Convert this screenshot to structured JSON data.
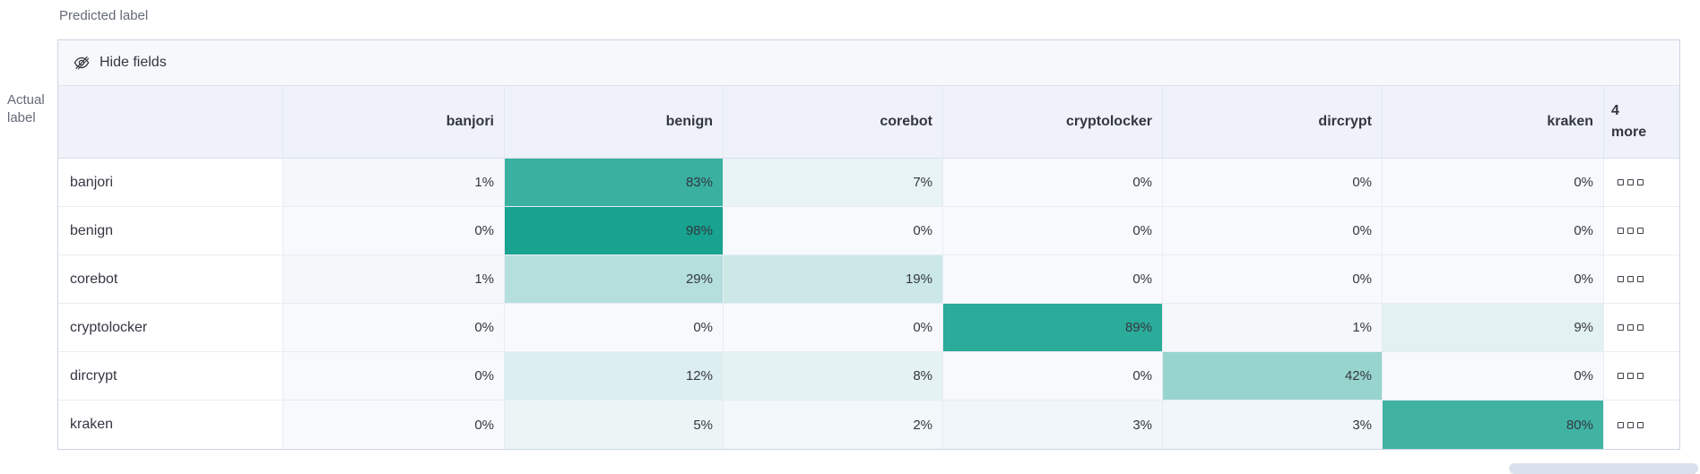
{
  "page": {
    "predicted_axis_label": "Predicted label",
    "actual_axis_label_line1": "Actual",
    "actual_axis_label_line2": "label"
  },
  "toolbar": {
    "hide_fields_label": "Hide fields",
    "hide_fields_icon": "eye-closed-icon"
  },
  "chart_data": {
    "type": "heatmap",
    "description": "Confusion matrix of actual vs predicted class labels, values as row percentages",
    "columns": [
      "banjori",
      "benign",
      "corebot",
      "cryptolocker",
      "dircrypt",
      "kraken"
    ],
    "more_header_lines": [
      "4",
      "more"
    ],
    "more_cell_icon": "boxes-horizontal-icon",
    "rows": [
      {
        "label": "banjori",
        "values": [
          1,
          83,
          7,
          0,
          0,
          0
        ]
      },
      {
        "label": "benign",
        "values": [
          0,
          98,
          0,
          0,
          0,
          0
        ]
      },
      {
        "label": "corebot",
        "values": [
          1,
          29,
          19,
          0,
          0,
          0
        ]
      },
      {
        "label": "cryptolocker",
        "values": [
          0,
          0,
          0,
          89,
          1,
          9
        ]
      },
      {
        "label": "dircrypt",
        "values": [
          0,
          12,
          8,
          0,
          42,
          0
        ]
      },
      {
        "label": "kraken",
        "values": [
          0,
          5,
          2,
          3,
          3,
          80
        ]
      }
    ],
    "value_format": "percent",
    "value_suffix": "%",
    "heat_scale": {
      "min_color": "#f7f9fc",
      "max_color": "#12a18d",
      "domain": [
        0,
        100
      ]
    },
    "legend": "off",
    "grid": "on"
  }
}
